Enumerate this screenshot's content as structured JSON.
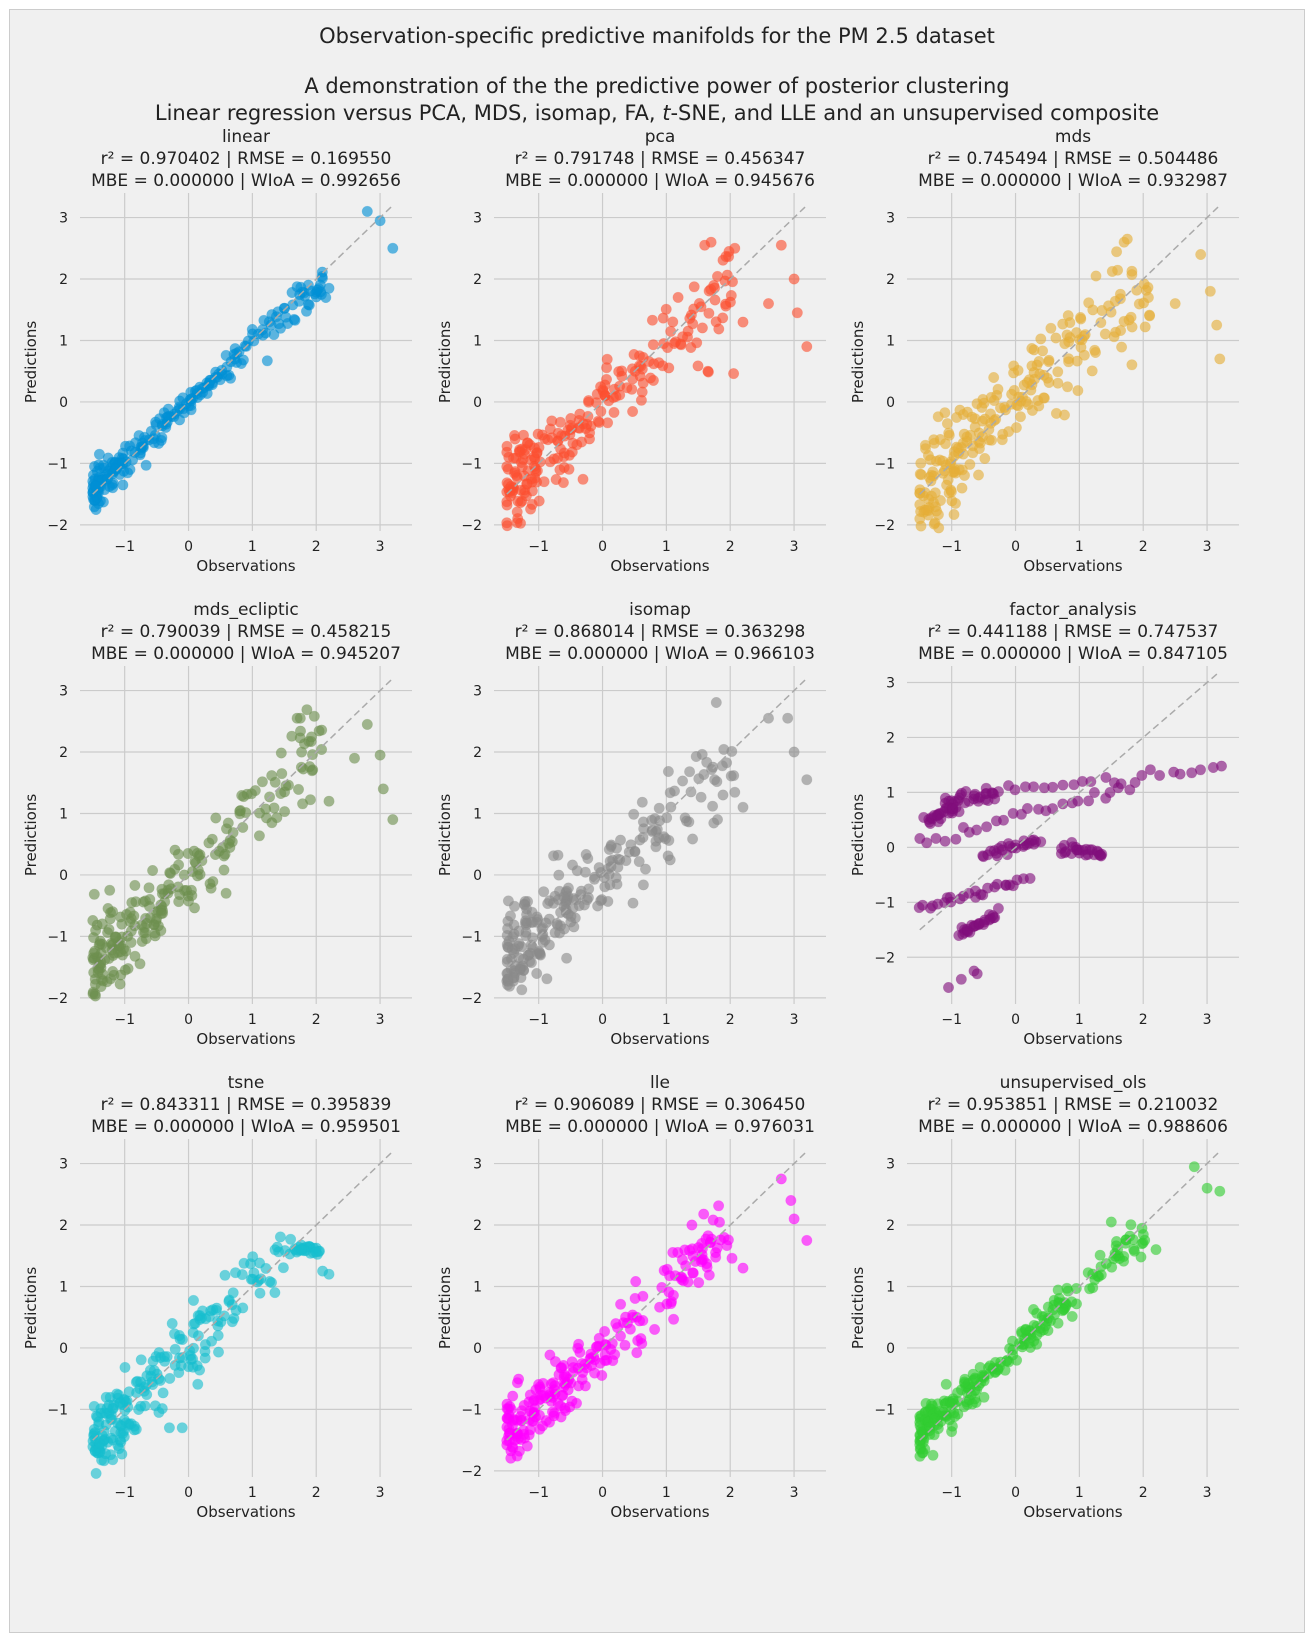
{
  "figure": {
    "title": "Observation-specific predictive manifolds for the PM 2.5 dataset",
    "subtitle_line1": "A demonstration of the the predictive power of posterior clustering",
    "subtitle_line2_before": "Linear regression versus PCA, MDS, isomap, FA, ",
    "subtitle_line2_italic": "t",
    "subtitle_line2_after": "-SNE, and LLE and an unsupervised composite"
  },
  "colors": {
    "background": "#f0f0f0",
    "grid": "#cbcbcb",
    "identity_line": "#aaaaaa",
    "text": "#222222"
  },
  "chart_data": [
    {
      "type": "scatter",
      "title": "linear",
      "stats_line1": "r² = 0.970402  |  RMSE = 0.169550",
      "stats_line2": "MBE = 0.000000  |  WIoA = 0.992656",
      "xlabel": "Observations",
      "ylabel": "Predictions",
      "xlim": [
        -1.7,
        3.5
      ],
      "ylim": [
        -2.1,
        3.4
      ],
      "xticks": [
        -1,
        0,
        1,
        2,
        3
      ],
      "yticks": [
        -2,
        -1,
        0,
        1,
        2,
        3
      ],
      "color": "#008fd5",
      "spread": 0.12,
      "identity": [
        -1.5,
        3.2
      ],
      "outliers": [
        [
          2.8,
          3.1
        ],
        [
          3.0,
          2.95
        ],
        [
          3.2,
          2.5
        ],
        [
          2.15,
          1.7
        ],
        [
          2.2,
          1.85
        ],
        [
          -1.45,
          -1.75
        ]
      ]
    },
    {
      "type": "scatter",
      "title": "pca",
      "stats_line1": "r² = 0.791748  |  RMSE = 0.456347",
      "stats_line2": "MBE = 0.000000  |  WIoA = 0.945676",
      "xlabel": "Observations",
      "ylabel": "Predictions",
      "xlim": [
        -1.7,
        3.5
      ],
      "ylim": [
        -2.1,
        3.4
      ],
      "xticks": [
        -1,
        0,
        1,
        2,
        3
      ],
      "yticks": [
        -2,
        -1,
        0,
        1,
        2,
        3
      ],
      "color": "#fc4f30",
      "spread": 0.35,
      "identity": [
        -1.5,
        3.2
      ],
      "outliers": [
        [
          1.6,
          2.55
        ],
        [
          1.7,
          2.6
        ],
        [
          2.8,
          2.55
        ],
        [
          3.0,
          2.0
        ],
        [
          3.05,
          1.45
        ],
        [
          3.2,
          0.9
        ],
        [
          2.6,
          1.6
        ],
        [
          2.2,
          1.3
        ],
        [
          1.65,
          0.5
        ]
      ]
    },
    {
      "type": "scatter",
      "title": "mds",
      "stats_line1": "r² = 0.745494  |  RMSE = 0.504486",
      "stats_line2": "MBE = 0.000000  |  WIoA = 0.932987",
      "xlabel": "Observations",
      "ylabel": "Predictions",
      "xlim": [
        -1.7,
        3.5
      ],
      "ylim": [
        -2.1,
        3.4
      ],
      "xticks": [
        -1,
        0,
        1,
        2,
        3
      ],
      "yticks": [
        -2,
        -1,
        0,
        1,
        2,
        3
      ],
      "color": "#e5ae38",
      "spread": 0.4,
      "identity": [
        -1.5,
        3.2
      ],
      "outliers": [
        [
          1.7,
          2.6
        ],
        [
          1.75,
          2.65
        ],
        [
          2.9,
          2.4
        ],
        [
          3.05,
          1.8
        ],
        [
          3.15,
          1.25
        ],
        [
          3.2,
          0.7
        ],
        [
          2.5,
          1.6
        ],
        [
          2.1,
          1.4
        ]
      ]
    },
    {
      "type": "scatter",
      "title": "mds_ecliptic",
      "stats_line1": "r² = 0.790039  |  RMSE = 0.458215",
      "stats_line2": "MBE = 0.000000  |  WIoA = 0.945207",
      "xlabel": "Observations",
      "ylabel": "Predictions",
      "xlim": [
        -1.7,
        3.5
      ],
      "ylim": [
        -2.1,
        3.4
      ],
      "xticks": [
        -1,
        0,
        1,
        2,
        3
      ],
      "yticks": [
        -2,
        -1,
        0,
        1,
        2,
        3
      ],
      "color": "#6d904f",
      "spread": 0.35,
      "identity": [
        -1.5,
        3.2
      ],
      "outliers": [
        [
          1.7,
          2.55
        ],
        [
          1.75,
          2.55
        ],
        [
          2.8,
          2.45
        ],
        [
          3.0,
          1.95
        ],
        [
          3.05,
          1.4
        ],
        [
          3.2,
          0.9
        ],
        [
          2.6,
          1.9
        ],
        [
          2.2,
          1.2
        ]
      ]
    },
    {
      "type": "scatter",
      "title": "isomap",
      "stats_line1": "r² = 0.868014  |  RMSE = 0.363298",
      "stats_line2": "MBE = 0.000000  |  WIoA = 0.966103",
      "xlabel": "Observations",
      "ylabel": "Predictions",
      "xlim": [
        -1.7,
        3.5
      ],
      "ylim": [
        -2.1,
        3.4
      ],
      "xticks": [
        -1,
        0,
        1,
        2,
        3
      ],
      "yticks": [
        -2,
        -1,
        0,
        1,
        2,
        3
      ],
      "color": "#8b8b8b",
      "spread": 0.3,
      "identity": [
        -1.5,
        3.2
      ],
      "outliers": [
        [
          2.9,
          2.55
        ],
        [
          3.0,
          2.0
        ],
        [
          3.2,
          1.55
        ],
        [
          2.6,
          2.55
        ],
        [
          2.2,
          1.1
        ],
        [
          1.8,
          0.9
        ]
      ]
    },
    {
      "type": "scatter",
      "title": "factor_analysis",
      "stats_line1": "r² = 0.441188  |  RMSE = 0.747537",
      "stats_line2": "MBE = 0.000000  |  WIoA = 0.847105",
      "xlabel": "Observations",
      "ylabel": "Predictions",
      "xlim": [
        -1.7,
        3.5
      ],
      "ylim": [
        -2.85,
        3.3
      ],
      "xticks": [
        -1,
        0,
        1,
        2,
        3
      ],
      "yticks": [
        -2,
        -1,
        0,
        1,
        2,
        3
      ],
      "color": "#810f7c",
      "spread": 0.0,
      "identity": [
        -1.5,
        3.2
      ],
      "outliers": [
        [
          -1.05,
          -2.55
        ],
        [
          -0.85,
          -2.4
        ],
        [
          -0.65,
          -2.25
        ],
        [
          -0.6,
          -2.3
        ]
      ]
    },
    {
      "type": "scatter",
      "title": "tsne",
      "stats_line1": "r² = 0.843311  |  RMSE = 0.395839",
      "stats_line2": "MBE = 0.000000  |  WIoA = 0.959501",
      "xlabel": "Observations",
      "ylabel": "Predictions",
      "xlim": [
        -1.7,
        3.5
      ],
      "ylim": [
        -2.1,
        3.4
      ],
      "xticks": [
        -1,
        0,
        1,
        2,
        3
      ],
      "yticks": [
        -1,
        0,
        1,
        2,
        3
      ],
      "color": "#17becf",
      "spread": 0.3,
      "identity": [
        -1.5,
        3.2
      ],
      "outliers": [
        [
          -0.1,
          -1.3
        ],
        [
          -0.3,
          -1.3
        ],
        [
          2.1,
          1.25
        ],
        [
          2.2,
          1.2
        ]
      ]
    },
    {
      "type": "scatter",
      "title": "lle",
      "stats_line1": "r² = 0.906089  |  RMSE = 0.306450",
      "stats_line2": "MBE = 0.000000  |  WIoA = 0.976031",
      "xlabel": "Observations",
      "ylabel": "Predictions",
      "xlim": [
        -1.7,
        3.5
      ],
      "ylim": [
        -2.1,
        3.4
      ],
      "xticks": [
        -1,
        0,
        1,
        2,
        3
      ],
      "yticks": [
        -2,
        -1,
        0,
        1,
        2,
        3
      ],
      "color": "#ff00ff",
      "spread": 0.28,
      "identity": [
        -1.5,
        3.2
      ],
      "outliers": [
        [
          2.8,
          2.75
        ],
        [
          2.95,
          2.4
        ],
        [
          3.0,
          2.1
        ],
        [
          3.2,
          1.75
        ],
        [
          2.2,
          1.3
        ],
        [
          1.4,
          2.0
        ]
      ]
    },
    {
      "type": "scatter",
      "title": "unsupervised_ols",
      "stats_line1": "r² = 0.953851  |  RMSE = 0.210032",
      "stats_line2": "MBE = 0.000000  |  WIoA = 0.988606",
      "xlabel": "Observations",
      "ylabel": "Predictions",
      "xlim": [
        -1.7,
        3.5
      ],
      "ylim": [
        -2.1,
        3.4
      ],
      "xticks": [
        -1,
        0,
        1,
        2,
        3
      ],
      "yticks": [
        -1,
        0,
        1,
        2,
        3
      ],
      "color": "#32cd32",
      "spread": 0.15,
      "identity": [
        -1.5,
        3.2
      ],
      "outliers": [
        [
          2.8,
          2.95
        ],
        [
          3.0,
          2.6
        ],
        [
          3.2,
          2.55
        ],
        [
          2.2,
          1.6
        ],
        [
          1.5,
          2.05
        ],
        [
          -1.45,
          -1.7
        ]
      ]
    }
  ]
}
